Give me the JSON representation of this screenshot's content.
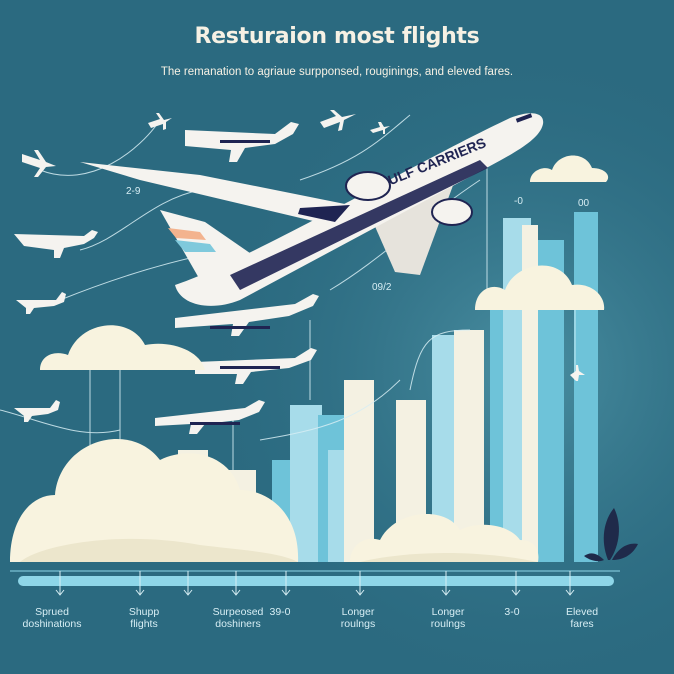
{
  "header": {
    "title": "Resturaion most flights",
    "subtitle": "The remanation to agriaue surpponsed, rouginings, and eleved fares."
  },
  "aircraft": {
    "livery_text": "ULF CARRIERS"
  },
  "side_labels": [
    "2-9",
    "09/2",
    "-0",
    "00"
  ],
  "categories": [
    {
      "line1": "Sprued",
      "line2": "doshinations"
    },
    {
      "line1": "Shupp",
      "line2": "flights"
    },
    {
      "line1": "Surpeosed",
      "line2": "doshiners"
    },
    {
      "line1": "39-0",
      "line2": ""
    },
    {
      "line1": "Longer",
      "line2": "roulngs"
    },
    {
      "line1": "Longer",
      "line2": "roulngs"
    },
    {
      "line1": "3-0",
      "line2": ""
    },
    {
      "line1": "Eleved",
      "line2": "fares"
    }
  ],
  "colors": {
    "background": "#2b6a80",
    "background_light": "#3d8397",
    "title_text": "#f6f1e4",
    "bar_light": "#a7dcea",
    "bar_mid": "#6ec3d9",
    "bar_cream": "#f4f1e2",
    "cloud": "#f8f3df",
    "aircraft_body": "#f5f3ef",
    "aircraft_navy": "#1f2452",
    "axis_line": "#8ed6e8",
    "label_text": "#d7eef4"
  }
}
